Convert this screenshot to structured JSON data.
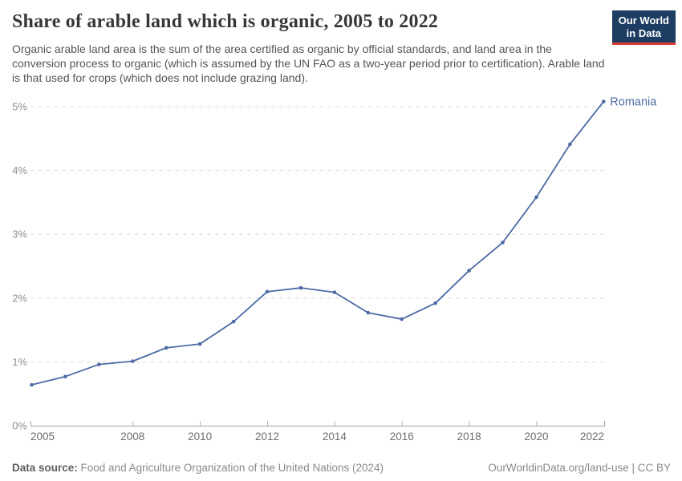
{
  "header": {
    "title": "Share of arable land which is organic, 2005 to 2022",
    "subtitle": "Organic arable land area is the sum of the area certified as organic by official standards, and land area in the conversion process to organic (which is assumed by the UN FAO as a two-year period prior to certification). Arable land is that used for crops (which does not include grazing land).",
    "logo": {
      "line1": "Our World",
      "line2": "in Data",
      "bg_color": "#1d3d63",
      "stripe_color": "#d93d32"
    }
  },
  "chart_data": {
    "type": "line",
    "title": "Share of arable land which is organic, 2005 to 2022",
    "x": [
      2005,
      2006,
      2007,
      2008,
      2009,
      2010,
      2011,
      2012,
      2013,
      2014,
      2015,
      2016,
      2017,
      2018,
      2019,
      2020,
      2021,
      2022
    ],
    "series": [
      {
        "name": "Romania",
        "color": "#4e6ba5",
        "values": [
          0.64,
          0.77,
          0.96,
          1.01,
          1.22,
          1.28,
          1.63,
          2.1,
          2.16,
          2.09,
          1.77,
          1.67,
          1.92,
          2.43,
          2.87,
          3.58,
          4.41,
          5.08
        ]
      }
    ],
    "xlabel": "",
    "ylabel": "",
    "ylim": [
      0,
      5
    ],
    "yticks": [
      0,
      1,
      2,
      3,
      4,
      5
    ],
    "ytick_suffix": "%",
    "xticks": [
      2005,
      2008,
      2010,
      2012,
      2014,
      2016,
      2018,
      2020,
      2022
    ],
    "grid": "dashed-horizontal",
    "gridline_color": "#dcdcdc",
    "axis_color": "#a3a3a3",
    "legend_position": "end-of-line-label"
  },
  "footer": {
    "datasource_label": "Data source:",
    "datasource_text": " Food and Agriculture Organization of the United Nations (2024)",
    "attribution": "OurWorldinData.org/land-use | CC BY"
  }
}
